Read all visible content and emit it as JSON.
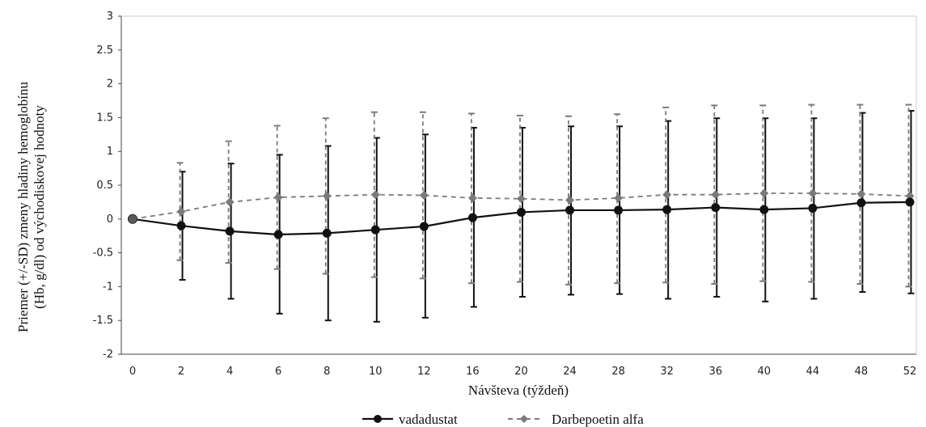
{
  "chart_data": {
    "type": "line",
    "title": "",
    "xlabel": "Návšteva (týždeň)",
    "ylabel_lines": [
      "Priemer (+/-SD) zmeny hladiny hemoglobínu",
      "(Hb, g/dl) od východiskovej hodnoty"
    ],
    "x": [
      "0",
      "2",
      "4",
      "6",
      "8",
      "10",
      "12",
      "16",
      "20",
      "24",
      "28",
      "32",
      "36",
      "40",
      "44",
      "48",
      "52"
    ],
    "ylim": [
      -2,
      3
    ],
    "yticks": [
      -2,
      -1.5,
      -1,
      -0.5,
      0,
      0.5,
      1,
      1.5,
      2,
      2.5,
      3
    ],
    "ytick_labels": [
      "-2",
      "-1.5",
      "-1",
      "-0.5",
      "0",
      "0.5",
      "1",
      "1.5",
      "2",
      "2.5",
      "3"
    ],
    "grid": false,
    "legend_position": "bottom",
    "series": [
      {
        "name": "vadadustat",
        "style": "solid",
        "color": "#111111",
        "marker": "circle",
        "values": [
          0,
          -0.1,
          -0.18,
          -0.23,
          -0.21,
          -0.16,
          -0.11,
          0.02,
          0.1,
          0.13,
          0.13,
          0.14,
          0.17,
          0.14,
          0.16,
          0.24,
          0.25
        ],
        "lower": [
          null,
          -0.9,
          -1.18,
          -1.4,
          -1.5,
          -1.52,
          -1.46,
          -1.3,
          -1.15,
          -1.12,
          -1.11,
          -1.18,
          -1.15,
          -1.22,
          -1.18,
          -1.08,
          -1.1
        ],
        "upper": [
          null,
          0.7,
          0.82,
          0.95,
          1.08,
          1.2,
          1.25,
          1.35,
          1.35,
          1.37,
          1.37,
          1.45,
          1.49,
          1.49,
          1.49,
          1.57,
          1.6
        ]
      },
      {
        "name": "Darbepoetin alfa",
        "style": "dashed",
        "color": "#7a7a7a",
        "marker": "diamond",
        "values": [
          0,
          0.11,
          0.25,
          0.32,
          0.34,
          0.36,
          0.35,
          0.31,
          0.3,
          0.28,
          0.31,
          0.36,
          0.36,
          0.38,
          0.38,
          0.37,
          0.34
        ],
        "lower": [
          null,
          -0.61,
          -0.65,
          -0.74,
          -0.81,
          -0.86,
          -0.88,
          -0.95,
          -0.93,
          -0.97,
          -0.95,
          -0.94,
          -0.96,
          -0.92,
          -0.93,
          -0.96,
          -1.0
        ],
        "upper": [
          null,
          0.83,
          1.15,
          1.38,
          1.49,
          1.58,
          1.58,
          1.56,
          1.53,
          1.52,
          1.55,
          1.65,
          1.68,
          1.68,
          1.69,
          1.69,
          1.69
        ]
      }
    ]
  }
}
